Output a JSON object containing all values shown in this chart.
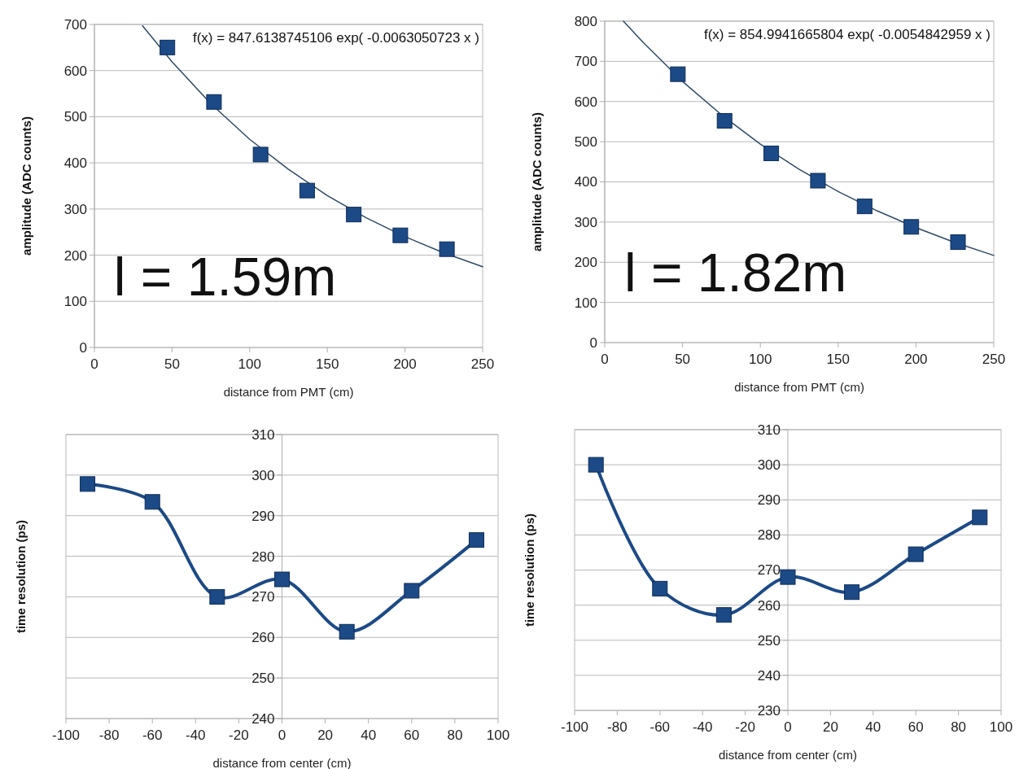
{
  "chart_data": [
    {
      "type": "scatter",
      "xlabel": "distance from PMT (cm)",
      "ylabel": "amplitude (ADC counts)",
      "xlim": [
        0,
        250
      ],
      "xticks": [
        0,
        50,
        100,
        150,
        200,
        250
      ],
      "ylim": [
        0,
        700
      ],
      "yticks": [
        0,
        100,
        200,
        300,
        400,
        500,
        600,
        700
      ],
      "grid": "y",
      "annotations": [
        "f(x) = 847.6138745106 exp( -0.0063050723 x )",
        "l = 1.59m"
      ],
      "series": [
        {
          "type": "line",
          "color": "#2e4a66",
          "marker": "none",
          "x": [
            31,
            50,
            75,
            100,
            125,
            150,
            175,
            200,
            225,
            250
          ],
          "values": [
            697,
            619,
            528,
            451,
            386,
            329,
            281,
            240,
            205,
            175
          ]
        },
        {
          "type": "scatter",
          "color": "#1c4a86",
          "marker": "square",
          "x": [
            47,
            77,
            107,
            137,
            167,
            197,
            227
          ],
          "values": [
            650,
            532,
            418,
            340,
            288,
            243,
            213
          ]
        }
      ]
    },
    {
      "type": "scatter",
      "xlabel": "distance from PMT (cm)",
      "ylabel": "amplitude (ADC counts)",
      "xlim": [
        0,
        250
      ],
      "xticks": [
        0,
        50,
        100,
        150,
        200,
        250
      ],
      "ylim": [
        0,
        800
      ],
      "yticks": [
        0,
        100,
        200,
        300,
        400,
        500,
        600,
        700,
        800
      ],
      "grid": "y",
      "annotations": [
        "f(x) = 854.9941665804 exp( -0.0054842959 x )",
        "l = 1.82m"
      ],
      "series": [
        {
          "type": "line",
          "color": "#2e4a66",
          "marker": "none",
          "x": [
            12,
            25,
            50,
            75,
            100,
            125,
            150,
            175,
            200,
            225,
            250
          ],
          "values": [
            800,
            746,
            650,
            567,
            494,
            431,
            376,
            328,
            286,
            249,
            217
          ]
        },
        {
          "type": "scatter",
          "color": "#1c4a86",
          "marker": "square",
          "x": [
            47,
            77,
            107,
            137,
            167,
            197,
            227
          ],
          "values": [
            668,
            552,
            471,
            403,
            339,
            288,
            250
          ]
        }
      ]
    },
    {
      "type": "line",
      "xlabel": "distance from center (cm)",
      "ylabel": "time resolution (ps)",
      "xlim": [
        -100,
        100
      ],
      "xticks": [
        -100,
        -80,
        -60,
        -40,
        -20,
        0,
        20,
        40,
        60,
        80,
        100
      ],
      "ylim": [
        240,
        310
      ],
      "yticks": [
        240,
        250,
        260,
        270,
        280,
        290,
        300,
        310
      ],
      "grid": "y",
      "marker": "square",
      "series": [
        {
          "color": "#1c4a86",
          "x": [
            -90,
            -60,
            -30,
            0,
            30,
            60,
            90
          ],
          "values": [
            297.8,
            293.4,
            270,
            274.3,
            261.4,
            271.5,
            284
          ]
        }
      ]
    },
    {
      "type": "line",
      "xlabel": "distance from center (cm)",
      "ylabel": "time resolution (ps)",
      "xlim": [
        -100,
        100
      ],
      "xticks": [
        -100,
        -80,
        -60,
        -40,
        -20,
        0,
        20,
        40,
        60,
        80,
        100
      ],
      "ylim": [
        230,
        310
      ],
      "yticks": [
        230,
        240,
        250,
        260,
        270,
        280,
        290,
        300,
        310
      ],
      "grid": "y",
      "marker": "square",
      "series": [
        {
          "color": "#1c4a86",
          "x": [
            -90,
            -60,
            -30,
            0,
            30,
            60,
            90
          ],
          "values": [
            300,
            264.7,
            257.2,
            268,
            263.7,
            274.5,
            285
          ]
        }
      ]
    }
  ]
}
